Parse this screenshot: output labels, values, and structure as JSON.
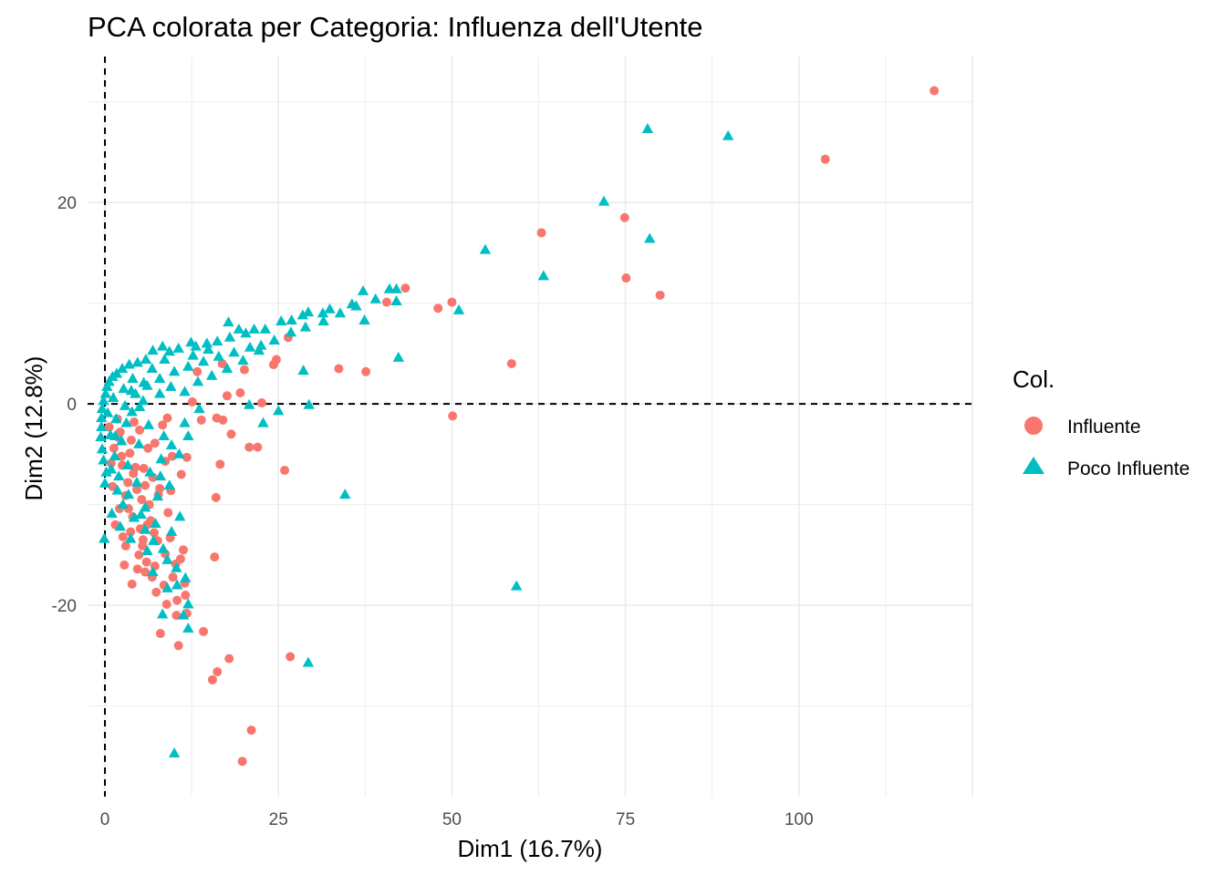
{
  "chart_data": {
    "type": "scatter",
    "title": "PCA colorata per Categoria: Influenza dell'Utente",
    "xlabel": "Dim1 (16.7%)",
    "ylabel": "Dim2 (12.8%)",
    "xlim": [
      -2.5,
      125
    ],
    "ylim": [
      -39,
      34.5
    ],
    "xticks": [
      0,
      25,
      50,
      75,
      100
    ],
    "yticks": [
      -20,
      0,
      20
    ],
    "grid": true,
    "reference_lines": {
      "x": 0,
      "y": 0,
      "style": "dashed"
    },
    "legend": {
      "title": "Col.",
      "placement": "right"
    },
    "series": [
      {
        "name": "Influente",
        "marker": "circle",
        "color": "#F8766D",
        "points": [
          [
            119.5,
            31.1
          ],
          [
            103.8,
            24.3
          ],
          [
            62.9,
            17.0
          ],
          [
            74.9,
            18.5
          ],
          [
            75.1,
            12.5
          ],
          [
            80.0,
            10.8
          ],
          [
            43.3,
            11.5
          ],
          [
            40.6,
            10.1
          ],
          [
            48.0,
            9.5
          ],
          [
            50.0,
            10.1
          ],
          [
            58.6,
            4.0
          ],
          [
            50.1,
            -1.2
          ],
          [
            37.6,
            3.2
          ],
          [
            33.7,
            3.5
          ],
          [
            26.4,
            6.6
          ],
          [
            24.7,
            4.4
          ],
          [
            24.3,
            3.9
          ],
          [
            22.6,
            0.1
          ],
          [
            19.5,
            1.1
          ],
          [
            20.1,
            3.4
          ],
          [
            16.9,
            4.0
          ],
          [
            13.3,
            3.2
          ],
          [
            12.6,
            0.2
          ],
          [
            17.6,
            0.8
          ],
          [
            16.1,
            -1.4
          ],
          [
            13.9,
            -1.6
          ],
          [
            17.0,
            -1.6
          ],
          [
            18.2,
            -3.0
          ],
          [
            20.8,
            -4.3
          ],
          [
            16.6,
            -6.0
          ],
          [
            22.0,
            -4.3
          ],
          [
            25.9,
            -6.6
          ],
          [
            16.0,
            -9.3
          ],
          [
            11.8,
            -5.3
          ],
          [
            11.0,
            -7.0
          ],
          [
            11.3,
            -14.5
          ],
          [
            15.8,
            -15.2
          ],
          [
            14.2,
            -22.6
          ],
          [
            26.7,
            -25.1
          ],
          [
            17.9,
            -25.3
          ],
          [
            16.2,
            -26.6
          ],
          [
            15.5,
            -27.4
          ],
          [
            21.1,
            -32.4
          ],
          [
            19.8,
            -35.5
          ],
          [
            10.6,
            -24.0
          ],
          [
            8.0,
            -22.8
          ],
          [
            11.8,
            -20.8
          ],
          [
            10.4,
            -19.5
          ],
          [
            9.8,
            -17.2
          ],
          [
            10.9,
            -15.4
          ],
          [
            8.7,
            -14.9
          ],
          [
            7.2,
            -16.1
          ],
          [
            5.8,
            -16.7
          ],
          [
            3.9,
            -17.9
          ],
          [
            5.5,
            -13.5
          ],
          [
            9.1,
            -10.8
          ],
          [
            7.7,
            -9.0
          ],
          [
            9.5,
            -8.6
          ],
          [
            6.9,
            -7.3
          ],
          [
            8.7,
            -5.7
          ],
          [
            9.7,
            -5.2
          ],
          [
            6.2,
            -4.4
          ],
          [
            4.4,
            -6.3
          ],
          [
            3.3,
            -7.8
          ],
          [
            2.1,
            -10.4
          ],
          [
            3.0,
            -9.1
          ],
          [
            4.0,
            -11.2
          ],
          [
            5.1,
            -12.4
          ],
          [
            6.4,
            -10.0
          ],
          [
            4.6,
            -8.5
          ],
          [
            2.5,
            -6.1
          ],
          [
            1.3,
            -4.4
          ],
          [
            0.6,
            -2.3
          ],
          [
            1.9,
            -3.3
          ],
          [
            3.6,
            -4.9
          ],
          [
            5.6,
            -6.4
          ],
          [
            7.1,
            -12.8
          ],
          [
            6.0,
            -15.7
          ],
          [
            7.4,
            -18.7
          ],
          [
            8.9,
            -19.9
          ],
          [
            10.3,
            -21.0
          ],
          [
            3.0,
            -14.1
          ],
          [
            1.5,
            -12.0
          ],
          [
            2.8,
            -16.0
          ],
          [
            4.7,
            -16.4
          ],
          [
            9.4,
            -13.3
          ],
          [
            10.2,
            -15.9
          ],
          [
            11.5,
            -17.8
          ],
          [
            6.6,
            -11.6
          ],
          [
            5.3,
            -9.5
          ],
          [
            1.1,
            -8.2
          ],
          [
            2.4,
            -5.2
          ],
          [
            3.8,
            -3.6
          ],
          [
            5.0,
            -2.6
          ],
          [
            7.2,
            -3.9
          ],
          [
            8.3,
            -2.1
          ],
          [
            9.0,
            -1.4
          ],
          [
            4.2,
            -1.8
          ],
          [
            1.8,
            -1.5
          ],
          [
            0.9,
            -5.9
          ],
          [
            2.6,
            -13.2
          ],
          [
            4.9,
            -15.0
          ],
          [
            6.8,
            -17.2
          ],
          [
            8.5,
            -18.0
          ],
          [
            11.6,
            -19.0
          ],
          [
            3.4,
            -10.4
          ],
          [
            5.8,
            -8.1
          ],
          [
            7.9,
            -8.4
          ],
          [
            4.1,
            -6.9
          ],
          [
            2.2,
            -2.8
          ],
          [
            6.1,
            -12.0
          ],
          [
            3.7,
            -12.7
          ],
          [
            5.4,
            -14.1
          ],
          [
            7.6,
            -13.6
          ]
        ]
      },
      {
        "name": "Poco Influente",
        "marker": "triangle",
        "color": "#00BFC4",
        "points": [
          [
            78.2,
            27.3
          ],
          [
            89.8,
            26.6
          ],
          [
            71.9,
            20.1
          ],
          [
            78.5,
            16.4
          ],
          [
            54.8,
            15.3
          ],
          [
            63.2,
            12.7
          ],
          [
            51.0,
            9.3
          ],
          [
            41.0,
            11.4
          ],
          [
            42.0,
            11.4
          ],
          [
            42.0,
            10.2
          ],
          [
            37.2,
            11.2
          ],
          [
            35.6,
            9.9
          ],
          [
            37.4,
            8.3
          ],
          [
            32.4,
            9.4
          ],
          [
            31.4,
            9.0
          ],
          [
            29.3,
            9.1
          ],
          [
            28.5,
            8.8
          ],
          [
            26.9,
            8.3
          ],
          [
            25.4,
            8.2
          ],
          [
            23.1,
            7.4
          ],
          [
            21.5,
            7.4
          ],
          [
            19.3,
            7.4
          ],
          [
            17.8,
            8.1
          ],
          [
            16.2,
            6.2
          ],
          [
            14.7,
            6.0
          ],
          [
            13.1,
            5.7
          ],
          [
            12.4,
            6.1
          ],
          [
            10.6,
            5.5
          ],
          [
            9.3,
            5.2
          ],
          [
            8.3,
            5.7
          ],
          [
            6.9,
            5.3
          ],
          [
            5.9,
            4.4
          ],
          [
            4.7,
            4.1
          ],
          [
            3.5,
            3.9
          ],
          [
            2.5,
            3.5
          ],
          [
            1.7,
            3.0
          ],
          [
            1.1,
            2.7
          ],
          [
            0.6,
            2.2
          ],
          [
            0.3,
            1.7
          ],
          [
            0.1,
            1.0
          ],
          [
            -0.2,
            0.3
          ],
          [
            -0.4,
            -0.5
          ],
          [
            -0.5,
            -1.4
          ],
          [
            -0.5,
            -2.3
          ],
          [
            -0.6,
            -3.3
          ],
          [
            -0.4,
            -4.5
          ],
          [
            -0.2,
            -5.6
          ],
          [
            0.2,
            -6.8
          ],
          [
            -0.1,
            -13.4
          ],
          [
            12.0,
            -22.3
          ],
          [
            10.0,
            -34.7
          ],
          [
            29.3,
            -25.7
          ],
          [
            34.6,
            -9.0
          ],
          [
            59.3,
            -18.1
          ],
          [
            29.4,
            -0.1
          ],
          [
            42.3,
            4.6
          ],
          [
            28.6,
            3.3
          ],
          [
            22.8,
            -1.9
          ],
          [
            25.0,
            -0.7
          ],
          [
            20.8,
            -0.1
          ],
          [
            13.6,
            -0.5
          ],
          [
            11.5,
            -1.9
          ],
          [
            12.0,
            -3.2
          ],
          [
            9.6,
            -4.1
          ],
          [
            10.7,
            -5.0
          ],
          [
            8.1,
            -5.5
          ],
          [
            9.3,
            -8.1
          ],
          [
            7.6,
            -9.2
          ],
          [
            5.8,
            -10.3
          ],
          [
            4.2,
            -11.3
          ],
          [
            5.8,
            -12.5
          ],
          [
            7.0,
            -13.6
          ],
          [
            8.4,
            -14.4
          ],
          [
            9.0,
            -15.5
          ],
          [
            10.3,
            -16.3
          ],
          [
            11.6,
            -17.3
          ],
          [
            10.4,
            -18.0
          ],
          [
            12.0,
            -19.9
          ],
          [
            11.3,
            -21.0
          ],
          [
            8.3,
            -20.9
          ],
          [
            5.2,
            -11.0
          ],
          [
            3.4,
            -9.0
          ],
          [
            2.0,
            -7.2
          ],
          [
            1.4,
            -5.2
          ],
          [
            0.8,
            -3.1
          ],
          [
            1.6,
            -1.5
          ],
          [
            2.9,
            -0.2
          ],
          [
            4.4,
            1.0
          ],
          [
            6.1,
            1.8
          ],
          [
            7.9,
            2.5
          ],
          [
            10.0,
            3.2
          ],
          [
            12.0,
            3.7
          ],
          [
            14.2,
            4.2
          ],
          [
            16.4,
            4.7
          ],
          [
            18.6,
            5.1
          ],
          [
            20.9,
            5.6
          ],
          [
            22.5,
            5.8
          ],
          [
            7.9,
            1.0
          ],
          [
            5.5,
            0.3
          ],
          [
            3.9,
            -0.8
          ],
          [
            6.3,
            -2.1
          ],
          [
            8.5,
            -3.2
          ],
          [
            4.9,
            -4.0
          ],
          [
            3.3,
            -6.1
          ],
          [
            2.4,
            -3.7
          ],
          [
            1.2,
            0.6
          ],
          [
            0.4,
            -0.9
          ],
          [
            5.0,
            -0.3
          ],
          [
            9.5,
            1.7
          ],
          [
            11.5,
            1.2
          ],
          [
            13.4,
            2.2
          ],
          [
            15.4,
            2.8
          ],
          [
            17.6,
            3.5
          ],
          [
            19.9,
            4.3
          ],
          [
            22.2,
            5.3
          ],
          [
            24.4,
            6.3
          ],
          [
            26.8,
            7.1
          ],
          [
            28.9,
            7.6
          ],
          [
            31.5,
            8.2
          ],
          [
            33.9,
            9.0
          ],
          [
            36.2,
            9.7
          ],
          [
            39.0,
            10.4
          ],
          [
            10.8,
            -11.2
          ],
          [
            8.0,
            -7.2
          ],
          [
            6.5,
            -6.8
          ],
          [
            7.3,
            -11.9
          ],
          [
            9.6,
            -12.7
          ],
          [
            4.6,
            -7.8
          ],
          [
            2.6,
            -10.0
          ],
          [
            1.8,
            -8.6
          ],
          [
            6.9,
            -16.7
          ],
          [
            9.0,
            -18.3
          ],
          [
            3.1,
            -1.9
          ],
          [
            4.0,
            2.5
          ],
          [
            6.8,
            3.5
          ],
          [
            8.6,
            4.4
          ],
          [
            18.0,
            6.6
          ],
          [
            20.3,
            7.0
          ],
          [
            14.9,
            5.4
          ],
          [
            12.7,
            4.8
          ],
          [
            0.0,
            -7.9
          ],
          [
            1.0,
            -10.9
          ],
          [
            3.7,
            -13.4
          ],
          [
            2.2,
            -12.2
          ],
          [
            6.1,
            -14.6
          ],
          [
            0.9,
            -6.5
          ],
          [
            1.5,
            -3.2
          ],
          [
            2.7,
            1.5
          ],
          [
            3.8,
            1.3
          ],
          [
            5.6,
            2.1
          ]
        ]
      }
    ]
  }
}
